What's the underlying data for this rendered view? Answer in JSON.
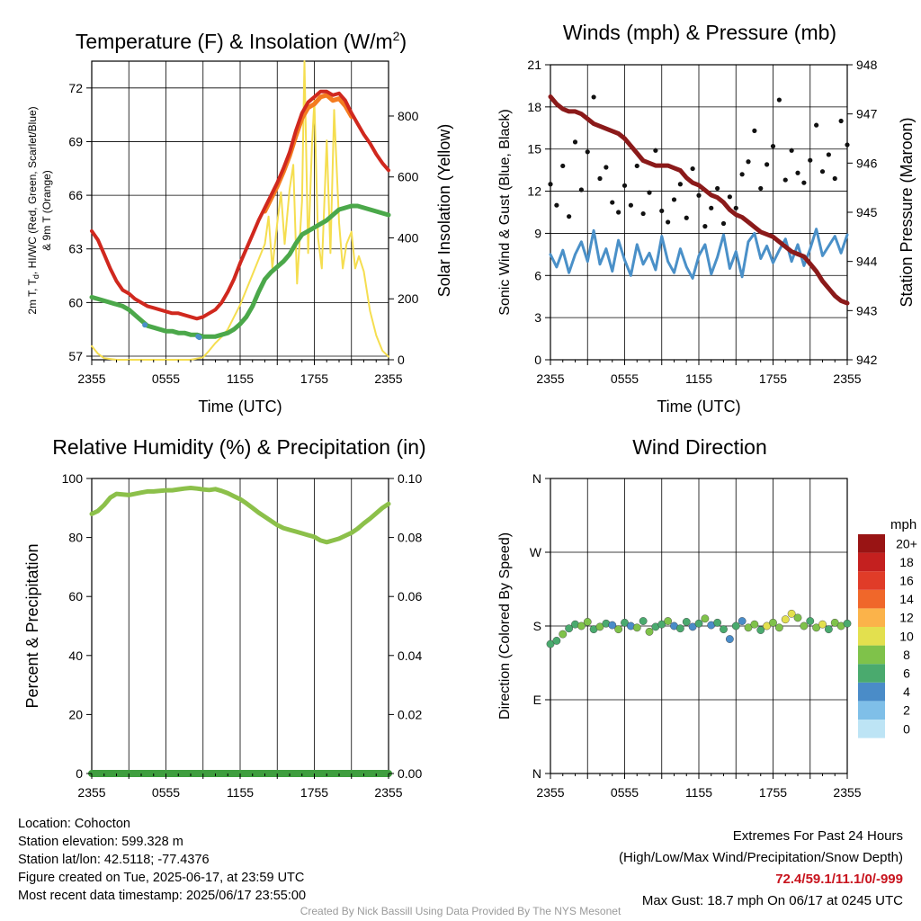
{
  "panels": {
    "temp": {
      "title": "Temperature (F) & Insolation (W/m",
      "title_sup": "2",
      "title_end": ")",
      "ylabel_left_1": "2m T, T",
      "ylabel_left_sub": "d",
      "ylabel_left_2": ", HI/WC (Red, Green, Scarlet/Blue)",
      "ylabel_left_3": "& 9m T (Orange)",
      "ylabel_right": "Solar Insolation (Yellow)",
      "xlabel": "Time (UTC)"
    },
    "wind": {
      "title": "Winds (mph) & Pressure (mb)",
      "ylabel_left": "Sonic Wind & Gust (Blue, Black)",
      "ylabel_right": "Station Pressure (Maroon)",
      "xlabel": "Time (UTC)"
    },
    "rh": {
      "title": "Relative Humidity (%) & Precipitation (in)",
      "ylabel_left": "Percent & Precipitation"
    },
    "dir": {
      "title": "Wind Direction",
      "ylabel_left": "Direction (Colored By Speed)",
      "legend_title": "mph"
    }
  },
  "chart_data": [
    {
      "id": "temp",
      "type": "line",
      "x_ticks": [
        "2355",
        "0555",
        "1155",
        "1755",
        "2355"
      ],
      "x_range_hours": [
        0,
        24
      ],
      "y_left_ticks": [
        57,
        60,
        63,
        66,
        69,
        72
      ],
      "y_left_range": [
        56.8,
        73.5
      ],
      "y_right_ticks": [
        0,
        200,
        400,
        600,
        800
      ],
      "y_right_range": [
        0,
        980
      ],
      "series": [
        {
          "color": "#d0281e",
          "x": [
            0,
            0.5,
            1,
            1.5,
            2,
            2.5,
            3,
            3.5,
            4,
            4.5,
            5,
            5.5,
            6,
            6.5,
            7,
            7.5,
            8,
            8.5,
            9,
            9.5,
            10,
            10.5,
            11,
            11.5,
            12,
            12.5,
            13,
            13.5,
            14,
            14.5,
            15,
            15.5,
            16,
            16.5,
            17,
            17.5,
            18,
            18.5,
            19,
            19.5,
            20,
            20.5,
            21,
            21.5,
            22,
            22.5,
            23,
            23.5,
            24
          ],
          "values": [
            64.0,
            63.5,
            62.7,
            61.9,
            61.2,
            60.7,
            60.5,
            60.2,
            60.0,
            59.8,
            59.7,
            59.6,
            59.5,
            59.4,
            59.4,
            59.3,
            59.2,
            59.1,
            59.2,
            59.4,
            59.6,
            60.0,
            60.6,
            61.3,
            62.2,
            63.0,
            63.8,
            64.6,
            65.3,
            66.0,
            66.7,
            67.5,
            68.4,
            69.6,
            70.6,
            71.2,
            71.5,
            71.8,
            71.8,
            71.6,
            71.7,
            71.3,
            70.6,
            70.0,
            69.4,
            68.9,
            68.3,
            67.8,
            67.4
          ]
        },
        {
          "color": "#f47b20",
          "x": [
            14,
            14.5,
            15,
            15.5,
            16,
            16.5,
            17,
            17.5,
            18,
            18.5,
            19,
            19.5,
            20,
            20.5,
            21
          ],
          "values": [
            65.1,
            65.8,
            66.5,
            67.3,
            68.2,
            69.3,
            70.3,
            70.9,
            71.1,
            71.5,
            71.6,
            71.3,
            71.4,
            71.0,
            70.4
          ]
        },
        {
          "color": "#4ba84a",
          "x": [
            0,
            0.5,
            1,
            1.5,
            2,
            2.5,
            3,
            3.5,
            4,
            4.5,
            5,
            5.5,
            6,
            6.5,
            7,
            7.5,
            8,
            8.5,
            9,
            9.5,
            10,
            10.5,
            11,
            11.5,
            12,
            12.5,
            13,
            13.5,
            14,
            14.5,
            15,
            15.5,
            16,
            16.5,
            17,
            17.5,
            18,
            18.5,
            19,
            19.5,
            20,
            20.5,
            21,
            21.5,
            22,
            22.5,
            23,
            23.5,
            24
          ],
          "values": [
            60.3,
            60.2,
            60.1,
            60.0,
            59.9,
            59.8,
            59.6,
            59.3,
            59.0,
            58.7,
            58.6,
            58.5,
            58.4,
            58.4,
            58.3,
            58.3,
            58.2,
            58.2,
            58.1,
            58.1,
            58.1,
            58.2,
            58.3,
            58.5,
            58.8,
            59.2,
            59.8,
            60.6,
            61.3,
            61.7,
            62.0,
            62.3,
            62.7,
            63.3,
            63.8,
            64.0,
            64.2,
            64.4,
            64.6,
            64.9,
            65.2,
            65.3,
            65.4,
            65.4,
            65.3,
            65.2,
            65.1,
            65.0,
            64.9
          ]
        },
        {
          "color": "#4a90c8",
          "x": [
            4.3,
            8.6,
            8.7
          ],
          "values": [
            58.75,
            58.1,
            58.05
          ]
        },
        {
          "color": "#f5de50",
          "x": [
            0,
            0.5,
            1,
            2,
            4,
            6,
            8,
            9,
            9.5,
            10,
            10.5,
            11,
            11.5,
            12,
            12.5,
            13,
            13.5,
            14,
            14.3,
            14.6,
            15,
            15.3,
            15.6,
            16,
            16.3,
            16.6,
            17,
            17.2,
            17.5,
            17.8,
            18,
            18.3,
            18.6,
            19,
            19.3,
            19.6,
            20,
            20.3,
            20.6,
            21,
            21.3,
            21.6,
            22,
            22.5,
            23,
            23.5,
            24
          ],
          "values": [
            45,
            20,
            5,
            0,
            0,
            0,
            0,
            8,
            30,
            55,
            75,
            100,
            140,
            180,
            230,
            280,
            330,
            380,
            470,
            300,
            450,
            550,
            380,
            560,
            640,
            250,
            520,
            980,
            350,
            700,
            850,
            400,
            300,
            720,
            350,
            820,
            450,
            300,
            380,
            420,
            300,
            340,
            290,
            160,
            80,
            30,
            10
          ]
        }
      ]
    },
    {
      "id": "wind",
      "type": "line",
      "x_ticks": [
        "2355",
        "0555",
        "1155",
        "1755",
        "2355"
      ],
      "x_range_hours": [
        0,
        24
      ],
      "y_left_ticks": [
        0,
        3,
        6,
        9,
        12,
        15,
        18,
        21
      ],
      "y_left_range": [
        0,
        21
      ],
      "y_right_ticks": [
        942,
        943,
        944,
        945,
        946,
        947,
        948
      ],
      "y_right_range": [
        942,
        948
      ],
      "series": [
        {
          "color": "#8b1a1a",
          "x": [
            0,
            0.5,
            1,
            1.5,
            2,
            2.5,
            3,
            3.5,
            4,
            4.5,
            5,
            5.5,
            6,
            6.5,
            7,
            7.5,
            8,
            8.5,
            9,
            9.5,
            10,
            10.5,
            11,
            11.5,
            12,
            12.5,
            13,
            13.5,
            14,
            14.5,
            15,
            15.5,
            16,
            16.5,
            17,
            17.5,
            18,
            18.5,
            19,
            19.5,
            20,
            20.5,
            21,
            21.5,
            22,
            22.5,
            23,
            23.5,
            24
          ],
          "values": [
            947.35,
            947.2,
            947.1,
            947.05,
            947.05,
            947.0,
            946.9,
            946.8,
            946.75,
            946.7,
            946.65,
            946.6,
            946.5,
            946.35,
            946.2,
            946.05,
            946.0,
            945.95,
            945.95,
            945.95,
            945.9,
            945.85,
            945.7,
            945.6,
            945.55,
            945.45,
            945.35,
            945.3,
            945.2,
            945.05,
            944.95,
            944.9,
            944.8,
            944.7,
            944.6,
            944.55,
            944.5,
            944.4,
            944.3,
            944.2,
            944.15,
            944.1,
            943.95,
            943.8,
            943.6,
            943.45,
            943.3,
            943.2,
            943.15
          ]
        },
        {
          "color": "#4a90c8",
          "x": [
            0,
            0.5,
            1,
            1.5,
            2,
            2.5,
            3,
            3.5,
            4,
            4.5,
            5,
            5.5,
            6,
            6.5,
            7,
            7.5,
            8,
            8.5,
            9,
            9.5,
            10,
            10.5,
            11,
            11.5,
            12,
            12.5,
            13,
            13.5,
            14,
            14.5,
            15,
            15.5,
            16,
            16.5,
            17,
            17.5,
            18,
            18.5,
            19,
            19.5,
            20,
            20.5,
            21,
            21.5,
            22,
            22.5,
            23,
            23.5,
            24
          ],
          "values": [
            7.5,
            6.6,
            7.8,
            6.2,
            7.5,
            8.4,
            7.0,
            9.2,
            6.8,
            7.9,
            6.3,
            8.5,
            7.1,
            6.0,
            8.2,
            6.8,
            7.6,
            6.4,
            8.8,
            7.0,
            6.2,
            7.9,
            6.6,
            5.8,
            7.4,
            8.2,
            6.1,
            7.3,
            8.9,
            6.5,
            7.7,
            5.9,
            8.4,
            9.0,
            7.2,
            8.1,
            6.9,
            7.8,
            8.6,
            7.0,
            8.2,
            6.7,
            7.9,
            9.3,
            7.4,
            8.1,
            8.8,
            7.6,
            8.9
          ]
        },
        {
          "color": "#111111",
          "x": [
            0,
            0.5,
            1,
            1.5,
            2,
            2.5,
            3,
            3.5,
            4,
            4.5,
            5,
            5.5,
            6,
            6.5,
            7,
            7.5,
            8,
            8.5,
            9,
            9.5,
            10,
            10.5,
            11,
            11.5,
            12,
            12.5,
            13,
            13.5,
            14,
            14.5,
            15,
            15.5,
            16,
            16.5,
            17,
            17.5,
            18,
            18.5,
            19,
            19.5,
            20,
            20.5,
            21,
            21.5,
            22,
            22.5,
            23,
            23.5,
            24
          ],
          "values": [
            12.5,
            11.0,
            13.8,
            10.2,
            15.5,
            12.1,
            14.8,
            18.7,
            12.9,
            13.7,
            11.2,
            10.5,
            12.4,
            11.0,
            13.8,
            10.4,
            11.9,
            14.9,
            10.6,
            9.8,
            11.4,
            12.5,
            10.1,
            13.6,
            11.7,
            9.5,
            10.8,
            12.2,
            9.7,
            11.6,
            10.8,
            13.2,
            14.1,
            16.3,
            12.2,
            13.9,
            15.2,
            18.5,
            12.8,
            14.9,
            13.3,
            12.6,
            14.2,
            16.7,
            13.4,
            14.6,
            12.9,
            17.0,
            15.3
          ]
        }
      ]
    },
    {
      "id": "rh",
      "type": "line",
      "x_ticks": [
        "2355",
        "0555",
        "1155",
        "1755",
        "2355"
      ],
      "x_range_hours": [
        0,
        24
      ],
      "y_left_ticks": [
        0,
        20,
        40,
        60,
        80,
        100
      ],
      "y_left_range": [
        0,
        100
      ],
      "y_right_ticks": [
        "0.00",
        "0.02",
        "0.04",
        "0.06",
        "0.08",
        "0.10"
      ],
      "y_right_range": [
        0,
        0.1
      ],
      "series": [
        {
          "color": "#8cc04a",
          "x": [
            0,
            0.5,
            1,
            1.5,
            2,
            2.5,
            3,
            3.5,
            4,
            4.5,
            5,
            5.5,
            6,
            6.5,
            7,
            7.5,
            8,
            8.5,
            9,
            9.5,
            10,
            10.5,
            11,
            11.5,
            12,
            12.5,
            13,
            13.5,
            14,
            14.5,
            15,
            15.5,
            16,
            16.5,
            17,
            17.5,
            18,
            18.5,
            19,
            19.5,
            20,
            20.5,
            21,
            21.5,
            22,
            22.5,
            23,
            23.5,
            24
          ],
          "values": [
            88.0,
            89.0,
            91.0,
            93.5,
            94.8,
            94.6,
            94.4,
            94.8,
            95.2,
            95.6,
            95.6,
            95.8,
            96.0,
            96.0,
            96.3,
            96.6,
            96.8,
            96.6,
            96.3,
            96.1,
            96.4,
            95.8,
            95.0,
            94.0,
            93.0,
            91.6,
            90.0,
            88.4,
            87.0,
            85.6,
            84.2,
            83.2,
            82.6,
            82.0,
            81.4,
            80.8,
            80.2,
            79.0,
            78.4,
            79.0,
            79.6,
            80.6,
            81.6,
            83.0,
            84.8,
            86.4,
            88.2,
            90.0,
            91.4
          ]
        },
        {
          "color": "#3f9e3f",
          "x": [
            0,
            24
          ],
          "values": [
            0,
            0
          ]
        }
      ]
    },
    {
      "id": "dir",
      "type": "scatter",
      "x_ticks": [
        "2355",
        "0555",
        "1155",
        "1755",
        "2355"
      ],
      "x_range_hours": [
        0,
        24
      ],
      "y_ticks": [
        "N",
        "E",
        "S",
        "W",
        "N"
      ],
      "y_range_deg": [
        0,
        360
      ],
      "colorbar": {
        "labels": [
          "0",
          "2",
          "4",
          "6",
          "8",
          "10",
          "12",
          "14",
          "16",
          "18",
          "20+"
        ],
        "colors": [
          "#bde4f5",
          "#7fbfe8",
          "#4a8cc8",
          "#4aaa6e",
          "#7fc24a",
          "#e3e04e",
          "#fbb34a",
          "#f0672a",
          "#e03c28",
          "#c4201f",
          "#991414"
        ]
      },
      "x": [
        0,
        0.5,
        1,
        1.5,
        2,
        2.5,
        3,
        3.5,
        4,
        4.5,
        5,
        5.5,
        6,
        6.5,
        7,
        7.5,
        8,
        8.5,
        9,
        9.5,
        10,
        10.5,
        11,
        11.5,
        12,
        12.5,
        13,
        13.5,
        14,
        14.5,
        15,
        15.5,
        16,
        16.5,
        17,
        17.5,
        18,
        18.5,
        19,
        19.5,
        20,
        20.5,
        21,
        21.5,
        22,
        22.5,
        23,
        23.5,
        24
      ],
      "values": [
        158,
        162,
        170,
        177,
        182,
        180,
        185,
        176,
        179,
        183,
        181,
        176,
        184,
        180,
        178,
        186,
        173,
        179,
        182,
        186,
        180,
        177,
        185,
        179,
        183,
        189,
        181,
        184,
        176,
        164,
        180,
        186,
        178,
        182,
        175,
        180,
        184,
        178,
        188,
        195,
        190,
        180,
        186,
        178,
        182,
        176,
        184,
        180,
        183
      ],
      "speeds": [
        6,
        7,
        8,
        6,
        7,
        9,
        8,
        6,
        8,
        7,
        5,
        8,
        7,
        4,
        8,
        6,
        9,
        7,
        6,
        8,
        5,
        7,
        6,
        4,
        7,
        8,
        5,
        7,
        6,
        5,
        7,
        4,
        8,
        9,
        7,
        10,
        8,
        9,
        11,
        10,
        8,
        9,
        7,
        8,
        10,
        6,
        8,
        9,
        7
      ]
    }
  ],
  "footer": {
    "location": "Location: Cohocton",
    "elevation": "Station elevation: 599.328 m",
    "latlon": "Station lat/lon: 42.5118; -77.4376",
    "created": "Figure created on Tue, 2025-06-17, at 23:59 UTC",
    "recent": "Most recent data timestamp: 2025/06/17 23:55:00",
    "extremes_title": "Extremes For Past 24 Hours",
    "extremes_sub": "(High/Low/Max Wind/Precipitation/Snow Depth)",
    "extremes_values": "72.4/59.1/11.1/0/-999",
    "max_gust": "Max Gust: 18.7 mph On 06/17 at 0245 UTC",
    "credit": "Created By Nick Bassill Using Data Provided By The NYS Mesonet"
  }
}
